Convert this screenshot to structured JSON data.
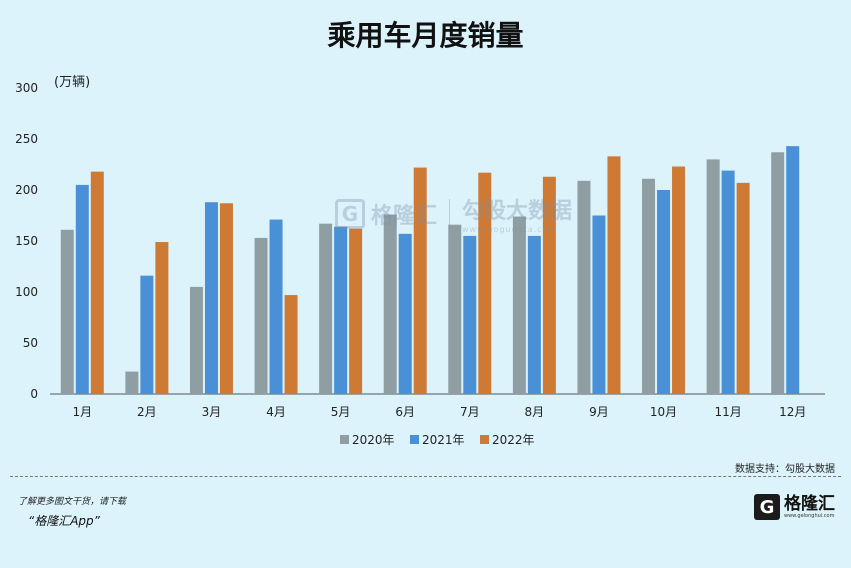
{
  "chart_data": {
    "type": "bar",
    "title": "乘用车月度销量",
    "ylabel": "(万辆)",
    "ylim": [
      0,
      300
    ],
    "yticks": [
      0,
      50,
      100,
      150,
      200,
      250,
      300
    ],
    "categories": [
      "1月",
      "2月",
      "3月",
      "4月",
      "5月",
      "6月",
      "7月",
      "8月",
      "9月",
      "10月",
      "11月",
      "12月"
    ],
    "series": [
      {
        "name": "2020年",
        "color": "#8f9ea3",
        "values": [
          161,
          22,
          105,
          153,
          167,
          176,
          166,
          174,
          209,
          211,
          230,
          237
        ]
      },
      {
        "name": "2021年",
        "color": "#4a90d6",
        "values": [
          205,
          116,
          188,
          171,
          164,
          157,
          155,
          155,
          175,
          200,
          219,
          243
        ]
      },
      {
        "name": "2022年",
        "color": "#cf7a34",
        "values": [
          218,
          149,
          187,
          97,
          162,
          222,
          217,
          213,
          233,
          223,
          207,
          null
        ]
      }
    ],
    "legend": "bottom",
    "grid": false
  },
  "source": "数据支持：勾股大数据",
  "footer": {
    "note": "了解更多图文干货，请下载",
    "app": "“格隆汇App”"
  },
  "logo": {
    "mark": "G",
    "text": "格隆汇",
    "url": "www.gelonghui.com"
  },
  "watermark": {
    "left": "格隆汇",
    "right": "勾股大数据",
    "url": "www.gogudata.com"
  }
}
